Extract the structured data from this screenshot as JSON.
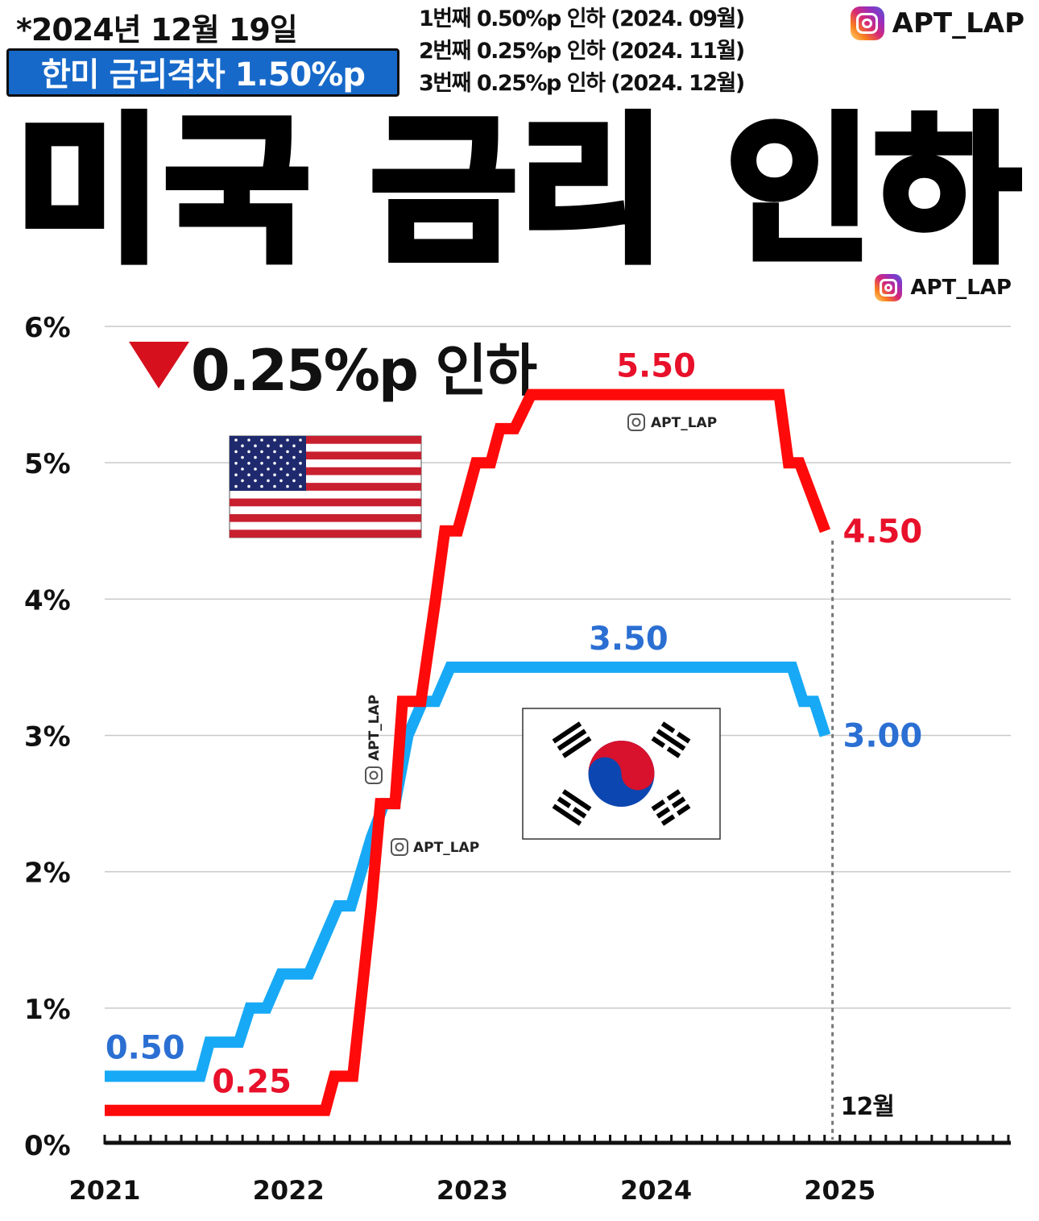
{
  "header": {
    "date": "*2024년 12월 19일",
    "rate_gap": "한미 금리격차 1.50%p",
    "cuts": [
      "1번째 0.50%p 인하 (2024. 09월)",
      "2번째 0.25%p 인하 (2024. 11월)",
      "3번째 0.25%p 인하 (2024. 12월)"
    ],
    "brand": "APT_LAP",
    "title": "미국 금리 인하"
  },
  "colors": {
    "us": "#ff0a0a",
    "kr": "#17a9f5",
    "us_label": "#e8102a",
    "kr_label": "#2b6fd3",
    "badge": "#1769c9"
  },
  "chart_data": {
    "type": "line",
    "annotation": "0.25%p 인하",
    "ylim": [
      0,
      6
    ],
    "yticks": [
      "0%",
      "1%",
      "2%",
      "3%",
      "4%",
      "5%",
      "6%"
    ],
    "xlim": [
      2021,
      2025.93
    ],
    "xticks": [
      "2021",
      "2022",
      "2023",
      "2024",
      "2025"
    ],
    "marker_label": "12월",
    "marker_x": 2024.96,
    "watermark": "APT_LAP",
    "series": [
      {
        "key": "us",
        "points": [
          [
            2021.0,
            0.25
          ],
          [
            2022.2,
            0.25
          ],
          [
            2022.25,
            0.5
          ],
          [
            2022.35,
            0.5
          ],
          [
            2022.45,
            1.75
          ],
          [
            2022.5,
            2.5
          ],
          [
            2022.58,
            2.5
          ],
          [
            2022.62,
            3.25
          ],
          [
            2022.72,
            3.25
          ],
          [
            2022.8,
            4.0
          ],
          [
            2022.85,
            4.5
          ],
          [
            2022.92,
            4.5
          ],
          [
            2023.02,
            5.0
          ],
          [
            2023.1,
            5.0
          ],
          [
            2023.15,
            5.25
          ],
          [
            2023.23,
            5.25
          ],
          [
            2023.32,
            5.5
          ],
          [
            2024.67,
            5.5
          ],
          [
            2024.72,
            5.0
          ],
          [
            2024.78,
            5.0
          ],
          [
            2024.92,
            4.5
          ]
        ],
        "labels": [
          {
            "text": "5.50",
            "x": 2024.0,
            "y": 5.5,
            "pos": "above"
          },
          {
            "text": "4.50",
            "x": 2024.92,
            "y": 4.5,
            "pos": "right"
          },
          {
            "text": "0.25",
            "x": 2021.8,
            "y": 0.25,
            "pos": "above"
          }
        ]
      },
      {
        "key": "kr",
        "points": [
          [
            2021.0,
            0.5
          ],
          [
            2021.52,
            0.5
          ],
          [
            2021.57,
            0.75
          ],
          [
            2021.73,
            0.75
          ],
          [
            2021.79,
            1.0
          ],
          [
            2021.88,
            1.0
          ],
          [
            2021.96,
            1.25
          ],
          [
            2022.11,
            1.25
          ],
          [
            2022.27,
            1.75
          ],
          [
            2022.34,
            1.75
          ],
          [
            2022.45,
            2.25
          ],
          [
            2022.52,
            2.5
          ],
          [
            2022.58,
            2.5
          ],
          [
            2022.65,
            3.0
          ],
          [
            2022.73,
            3.25
          ],
          [
            2022.8,
            3.25
          ],
          [
            2022.88,
            3.5
          ],
          [
            2024.74,
            3.5
          ],
          [
            2024.8,
            3.25
          ],
          [
            2024.86,
            3.25
          ],
          [
            2024.92,
            3.0
          ]
        ],
        "labels": [
          {
            "text": "3.50",
            "x": 2023.85,
            "y": 3.5,
            "pos": "above"
          },
          {
            "text": "3.00",
            "x": 2024.92,
            "y": 3.0,
            "pos": "right"
          },
          {
            "text": "0.50",
            "x": 2021.22,
            "y": 0.5,
            "pos": "above"
          }
        ]
      }
    ]
  }
}
